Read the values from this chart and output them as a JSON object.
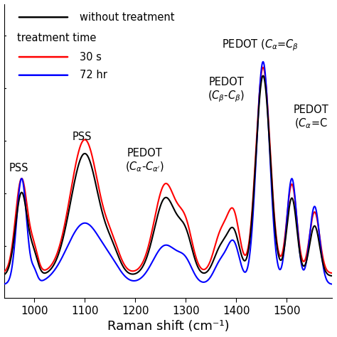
{
  "xlabel": "Raman shift (cm⁻¹)",
  "xlim": [
    940,
    1590
  ],
  "ylim": [
    0.0,
    1.12
  ],
  "background_color": "#ffffff",
  "legend": {
    "without_treatment": "without treatment",
    "treatment_time": "treatment time",
    "30s": "30 s",
    "72hr": "72 hr"
  },
  "xticks": [
    1000,
    1100,
    1200,
    1300,
    1400,
    1500
  ],
  "line_lw": 1.5
}
